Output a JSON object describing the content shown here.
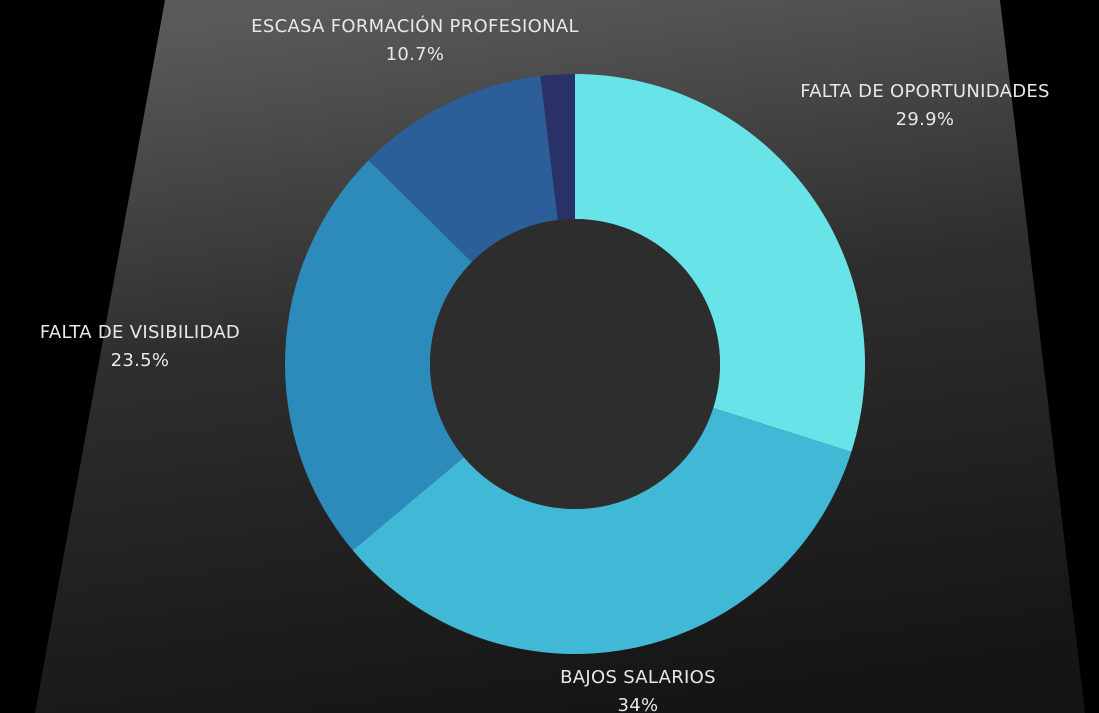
{
  "chart_data": {
    "type": "donut",
    "categories": [
      "FALTA DE OPORTUNIDADES",
      "BAJOS SALARIOS",
      "FALTA DE VISIBILIDAD",
      "ESCASA FORMACIÓN PROFESIONAL",
      null
    ],
    "values": [
      29.9,
      34,
      23.5,
      10.7,
      1.9
    ],
    "value_labels": [
      "29.9%",
      "34%",
      "23.5%",
      "10.7%",
      null
    ],
    "colors": [
      "#68e4e8",
      "#41b8d6",
      "#2d8bbb",
      "#2c5f9a",
      "#2a3168"
    ]
  }
}
